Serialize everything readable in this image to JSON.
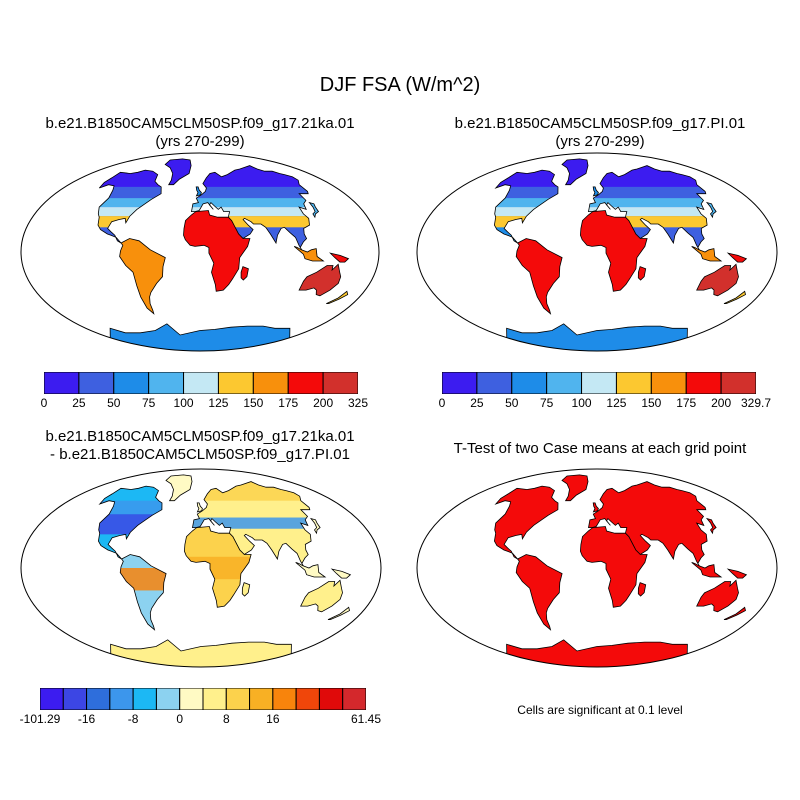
{
  "title": "DJF FSA (W/m^2)",
  "panels": [
    {
      "id": "a",
      "title_line1": "b.e21.B1850CAM5CLM50SP.f09_g17.21ka.01",
      "title_line2": "(yrs 270-299)"
    },
    {
      "id": "b",
      "title_line1": "b.e21.B1850CAM5CLM50SP.f09_g17.PI.01",
      "title_line2": "(yrs 270-299)"
    },
    {
      "id": "c",
      "title_line1": "b.e21.B1850CAM5CLM50SP.f09_g17.21ka.01",
      "title_line2": "- b.e21.B1850CAM5CLM50SP.f09_g17.PI.01"
    },
    {
      "id": "d",
      "title_line1": "T-Test of two Case means at each grid point",
      "title_line2": ""
    }
  ],
  "colorbars": {
    "a": {
      "colors": [
        "#3c1cf0",
        "#3e60e0",
        "#1e8ce8",
        "#50b4ee",
        "#c4e8f4",
        "#fcc830",
        "#f8900c",
        "#f40a0a",
        "#d2302c"
      ],
      "labels": [
        "0",
        "25",
        "50",
        "75",
        "100",
        "125",
        "150",
        "175",
        "200",
        "325"
      ]
    },
    "b": {
      "colors": [
        "#3c1cf0",
        "#3e60e0",
        "#1e8ce8",
        "#50b4ee",
        "#c4e8f4",
        "#fcc830",
        "#f8900c",
        "#f40a0a",
        "#d2302c"
      ],
      "labels": [
        "0",
        "25",
        "50",
        "75",
        "100",
        "125",
        "150",
        "175",
        "200",
        "329.7"
      ]
    },
    "c": {
      "colors": [
        "#3c1cf0",
        "#3c46e4",
        "#2e6edc",
        "#3c96ec",
        "#1cb8f4",
        "#8cd2f0",
        "#fffac4",
        "#fff08c",
        "#fcd24c",
        "#f8b024",
        "#f8840c",
        "#f0460a",
        "#e00a0a",
        "#d4282c"
      ],
      "labels": {
        "-101.29": 0,
        "-16": 2,
        "-8": 4,
        "0": 6,
        "8": 8,
        "16": 10,
        "61.45": 14
      },
      "label_list": [
        [
          "-101.29",
          0
        ],
        [
          "-16",
          2
        ],
        [
          "-8",
          4
        ],
        [
          "0",
          6
        ],
        [
          "8",
          8
        ],
        [
          "16",
          10
        ],
        [
          "61.45",
          14
        ]
      ]
    }
  },
  "note": "Cells are significant at 0.1 level",
  "map_colors": {
    "ocean": "#ffffff",
    "significant": "#f40a0a",
    "coast": "#000000"
  }
}
